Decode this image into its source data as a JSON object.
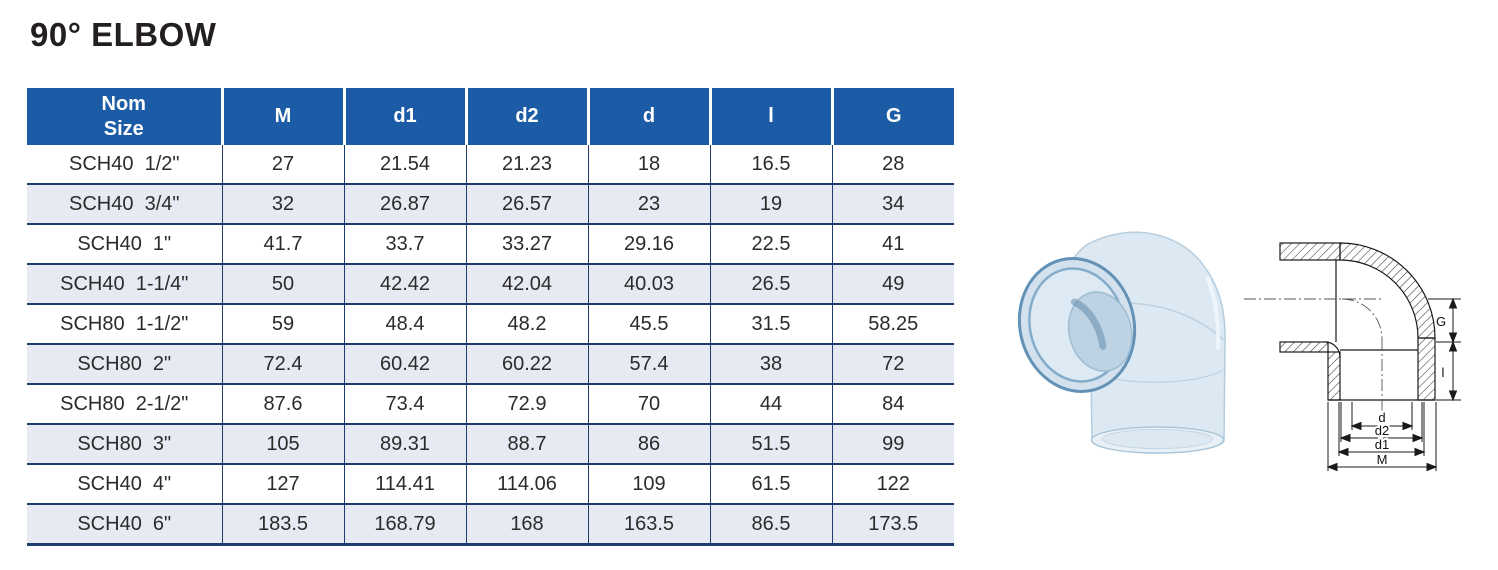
{
  "title": "90° ELBOW",
  "table": {
    "nom_header": {
      "line1": "Nom",
      "line2": "Size"
    },
    "col_headers": [
      "M",
      "d1",
      "d2",
      "d",
      "l",
      "G"
    ],
    "rows": [
      {
        "size": "SCH40  1/2\"",
        "values": [
          "27",
          "21.54",
          "21.23",
          "18",
          "16.5",
          "28"
        ]
      },
      {
        "size": "SCH40  3/4\"",
        "values": [
          "32",
          "26.87",
          "26.57",
          "23",
          "19",
          "34"
        ]
      },
      {
        "size": "SCH40  1\"",
        "values": [
          "41.7",
          "33.7",
          "33.27",
          "29.16",
          "22.5",
          "41"
        ]
      },
      {
        "size": "SCH40  1-1/4\"",
        "values": [
          "50",
          "42.42",
          "42.04",
          "40.03",
          "26.5",
          "49"
        ]
      },
      {
        "size": "SCH80  1-1/2\"",
        "values": [
          "59",
          "48.4",
          "48.2",
          "45.5",
          "31.5",
          "58.25"
        ]
      },
      {
        "size": "SCH80  2\"",
        "values": [
          "72.4",
          "60.42",
          "60.22",
          "57.4",
          "38",
          "72"
        ]
      },
      {
        "size": "SCH80  2-1/2\"",
        "values": [
          "87.6",
          "73.4",
          "72.9",
          "70",
          "44",
          "84"
        ]
      },
      {
        "size": "SCH80  3\"",
        "values": [
          "105",
          "89.31",
          "88.7",
          "86",
          "51.5",
          "99"
        ]
      },
      {
        "size": "SCH40  4\"",
        "values": [
          "127",
          "114.41",
          "114.06",
          "109",
          "61.5",
          "122"
        ]
      },
      {
        "size": "SCH40  6\"",
        "values": [
          "183.5",
          "168.79",
          "168",
          "163.5",
          "86.5",
          "173.5"
        ]
      }
    ]
  },
  "diagram": {
    "labels": {
      "g": "G",
      "l": "l",
      "d": "d",
      "d2": "d2",
      "d1": "d1",
      "m": "M"
    }
  },
  "photo": {
    "alt": "transparent 90-degree elbow fitting"
  },
  "colors": {
    "header_bg": "#1c5ca6",
    "row_alt": "#e7eaf2",
    "table_border": "#1c3e6e",
    "title_text": "#231f20"
  }
}
